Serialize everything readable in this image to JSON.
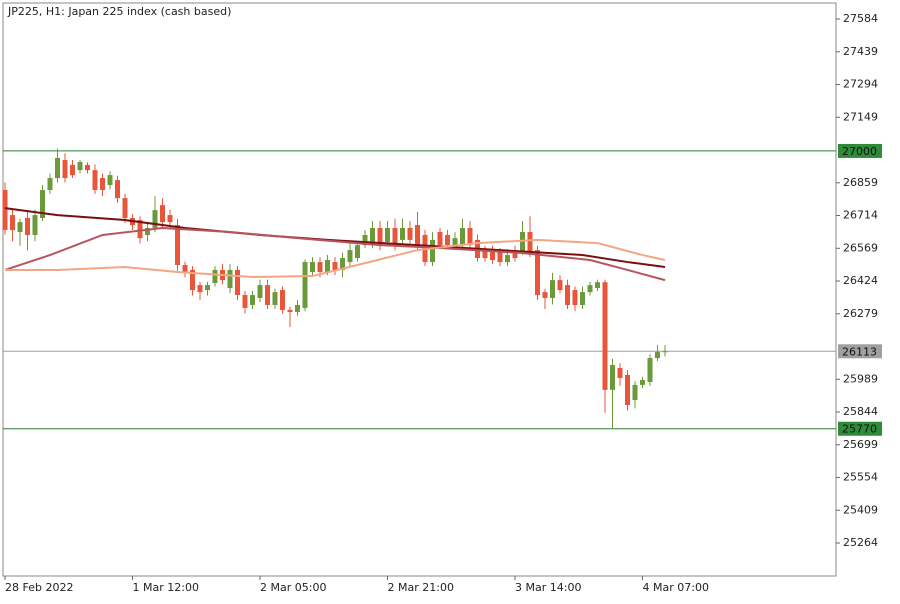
{
  "chart_data": {
    "type": "candlestick",
    "title": "JP225, H1:  Japan 225 index (cash based)",
    "categories": [
      "28 Feb 2022",
      null,
      null,
      null,
      null,
      null,
      null,
      null,
      null,
      null,
      null,
      null,
      null,
      null,
      null,
      null,
      null,
      "1 Mar 12:00",
      null,
      null,
      null,
      null,
      null,
      null,
      null,
      null,
      null,
      null,
      null,
      null,
      null,
      null,
      null,
      null,
      "2 Mar 05:00",
      null,
      null,
      null,
      null,
      null,
      null,
      null,
      null,
      null,
      null,
      null,
      null,
      null,
      null,
      null,
      null,
      "2 Mar 21:00",
      null,
      null,
      null,
      null,
      null,
      null,
      null,
      null,
      null,
      null,
      null,
      null,
      null,
      null,
      null,
      null,
      "3 Mar 14:00",
      null,
      null,
      null,
      null,
      null,
      null,
      null,
      null,
      null,
      null,
      null,
      null,
      null,
      null,
      null,
      null,
      "4 Mar 07:00",
      null,
      null,
      null
    ],
    "open": [
      26827,
      26716,
      26641,
      26703,
      26628,
      26703,
      26827,
      26880,
      26960,
      26938,
      26915,
      26938,
      26915,
      26880,
      26849,
      26871,
      26791,
      26703,
      26694,
      26628,
      26659,
      26760,
      26716,
      26672,
      26495,
      26473,
      26406,
      26384,
      26415,
      26473,
      26393,
      26473,
      26362,
      26318,
      26349,
      26406,
      26318,
      26384,
      26296,
      26287,
      26305,
      26464,
      26508,
      26464,
      26508,
      26473,
      26508,
      26526,
      26583,
      26583,
      26659,
      26597,
      26659,
      26606,
      26659,
      26672,
      26628,
      26508,
      26641,
      26628,
      26583,
      26583,
      26659,
      26606,
      26561,
      26561,
      26552,
      26508,
      26561,
      26552,
      26641,
      26561,
      26375,
      26349,
      26428,
      26406,
      26384,
      26318,
      26375,
      26393,
      26419,
      25942,
      26039,
      26008,
      25897,
      25964,
      25977,
      26083,
      26110
    ],
    "high": [
      26860,
      26740,
      26700,
      26730,
      26740,
      26850,
      26900,
      27010,
      26990,
      26960,
      26960,
      26950,
      26940,
      26900,
      26910,
      26890,
      26810,
      26720,
      26710,
      26680,
      26800,
      26790,
      26740,
      26700,
      26510,
      26490,
      26420,
      26420,
      26490,
      26500,
      26500,
      26490,
      26380,
      26380,
      26430,
      26430,
      26390,
      26400,
      26310,
      26340,
      26520,
      26530,
      26530,
      26540,
      26530,
      26550,
      26590,
      26600,
      26650,
      26690,
      26690,
      26690,
      26700,
      26700,
      26690,
      26730,
      26650,
      26640,
      26660,
      26650,
      26640,
      26700,
      26690,
      26630,
      26580,
      26580,
      26570,
      26560,
      26580,
      26690,
      26710,
      26580,
      26390,
      26460,
      26450,
      26430,
      26400,
      26400,
      26420,
      26430,
      26430,
      26080,
      26060,
      26030,
      25980,
      26000,
      26100,
      26140,
      26140
    ],
    "low": [
      26630,
      26600,
      26580,
      26560,
      26600,
      26690,
      26810,
      26860,
      26860,
      26880,
      26900,
      26900,
      26810,
      26800,
      26830,
      26770,
      26680,
      26650,
      26590,
      26600,
      26640,
      26660,
      26660,
      26470,
      26440,
      26360,
      26340,
      26360,
      26400,
      26410,
      26370,
      26340,
      26280,
      26300,
      26330,
      26300,
      26300,
      26280,
      26220,
      26270,
      26290,
      26450,
      26440,
      26450,
      26450,
      26440,
      26490,
      26510,
      26570,
      26570,
      26560,
      26580,
      26560,
      26590,
      26590,
      26560,
      26490,
      26490,
      26570,
      26570,
      26570,
      26570,
      26560,
      26510,
      26510,
      26500,
      26490,
      26490,
      26510,
      26540,
      26530,
      26340,
      26300,
      26320,
      26370,
      26300,
      26290,
      26300,
      26360,
      26380,
      25840,
      25770,
      25960,
      25850,
      25860,
      25950,
      25960,
      26070,
      26090
    ],
    "close": [
      26650,
      26650,
      26685,
      26628,
      26716,
      26827,
      26880,
      26969,
      26880,
      26893,
      26951,
      26915,
      26827,
      26827,
      26893,
      26791,
      26703,
      26672,
      26614,
      26659,
      26738,
      26685,
      26685,
      26495,
      26464,
      26384,
      26375,
      26406,
      26473,
      26428,
      26473,
      26362,
      26305,
      26362,
      26406,
      26318,
      26375,
      26296,
      26287,
      26318,
      26508,
      26508,
      26464,
      26517,
      26473,
      26526,
      26561,
      26583,
      26628,
      26659,
      26583,
      26659,
      26583,
      26659,
      26606,
      26583,
      26508,
      26606,
      26583,
      26583,
      26614,
      26659,
      26583,
      26526,
      26526,
      26517,
      26508,
      26539,
      26526,
      26641,
      26552,
      26362,
      26349,
      26428,
      26384,
      26318,
      26318,
      26375,
      26406,
      26419,
      25942,
      26052,
      25995,
      25875,
      25964,
      25986,
      26083,
      26110,
      26113
    ],
    "up_color": "#6b9a3a",
    "down_color": "#e8553a",
    "lines": [
      {
        "color": "#7a0f0f",
        "x": [
          0,
          7,
          16,
          24,
          34,
          43,
          55,
          66,
          77,
          83,
          88
        ],
        "values": [
          26747,
          26716,
          26694,
          26659,
          26628,
          26606,
          26583,
          26561,
          26539,
          26508,
          26486
        ]
      },
      {
        "color": "#b8545c",
        "x": [
          0,
          6,
          13,
          21,
          30,
          39,
          50,
          58,
          69,
          78,
          83,
          88
        ],
        "values": [
          26473,
          26539,
          26628,
          26659,
          26641,
          26614,
          26583,
          26570,
          26548,
          26517,
          26473,
          26428
        ]
      },
      {
        "color": "#f4a582",
        "x": [
          0,
          7,
          16,
          23,
          33,
          41,
          47,
          55,
          63,
          71,
          79,
          85,
          88
        ],
        "values": [
          26473,
          26473,
          26486,
          26464,
          26442,
          26446,
          26495,
          26561,
          26592,
          26606,
          26592,
          26539,
          26517
        ]
      }
    ],
    "levels": [
      {
        "value": 27000,
        "color": "#2f7d32",
        "label_bg": "#2f8a3a"
      },
      {
        "value": 26113,
        "color": "#8fa88f",
        "label_bg": "#a0a0a0"
      },
      {
        "value": 25770,
        "color": "#2f7d32",
        "label_bg": "#2f8a3a"
      }
    ],
    "ylim": [
      25118,
      27655
    ],
    "yticks": [
      27584,
      27439,
      27294,
      27149,
      26859,
      26714,
      26569,
      26424,
      26279,
      25989,
      25844,
      25699,
      25554,
      25409,
      25264
    ]
  }
}
